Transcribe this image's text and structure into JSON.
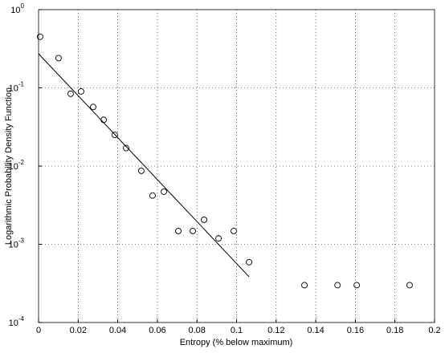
{
  "chart_data": {
    "type": "scatter",
    "xlabel": "Entropy (% below maximum)",
    "ylabel": "Logarithmic Probability Density Function",
    "xlim": [
      0,
      0.2
    ],
    "xticks": [
      0,
      0.02,
      0.04,
      0.06,
      0.08,
      0.1,
      0.12,
      0.14,
      0.16,
      0.18,
      0.2
    ],
    "ylim": [
      0.0001,
      1
    ],
    "ylog": true,
    "grid": true,
    "yticks": [
      {
        "value": 0.0001,
        "label": "10",
        "exponent": "-4"
      },
      {
        "value": 0.001,
        "label": "10",
        "exponent": "-3"
      },
      {
        "value": 0.01,
        "label": "10",
        "exponent": "-2"
      },
      {
        "value": 0.1,
        "label": "10",
        "exponent": "-1"
      },
      {
        "value": 1,
        "label": "10",
        "exponent": "0"
      }
    ],
    "series": [
      {
        "mode": "markers",
        "color": "#000000",
        "x": [
          0.0008,
          0.0101,
          0.0162,
          0.0215,
          0.0276,
          0.0329,
          0.0385,
          0.0442,
          0.0519,
          0.0576,
          0.0633,
          0.0706,
          0.0779,
          0.0836,
          0.0909,
          0.0986,
          0.1063,
          0.1343,
          0.151,
          0.1607,
          0.1874
        ],
        "values": [
          0.45,
          0.24,
          0.084,
          0.09,
          0.057,
          0.039,
          0.025,
          0.017,
          0.0087,
          0.0042,
          0.0047,
          0.00148,
          0.00148,
          0.00206,
          0.00119,
          0.00148,
          0.00059,
          0.0003,
          0.0003,
          0.0003,
          0.0003
        ]
      },
      {
        "mode": "line",
        "color": "#000000",
        "x": [
          0,
          0.1063
        ],
        "values": [
          0.273,
          0.000385
        ]
      }
    ]
  }
}
